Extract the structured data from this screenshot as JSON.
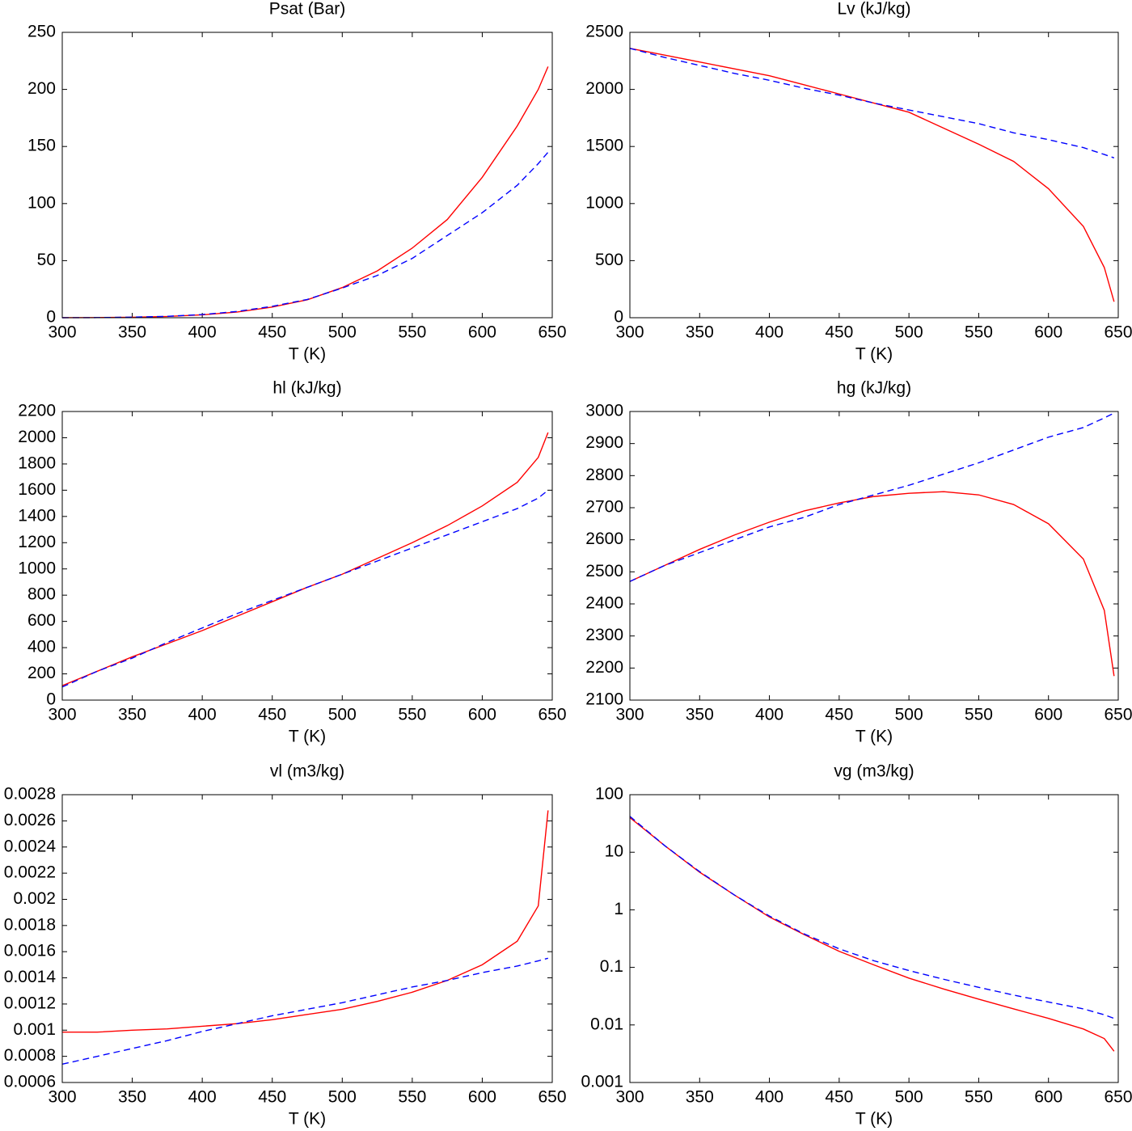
{
  "chart_data": [
    {
      "type": "line",
      "title": "Psat (Bar)",
      "xlabel": "T (K)",
      "x": [
        300,
        325,
        350,
        375,
        400,
        425,
        450,
        475,
        500,
        525,
        550,
        575,
        600,
        625,
        640,
        647
      ],
      "xlim": [
        300,
        650
      ],
      "xticks": [
        300,
        350,
        400,
        450,
        500,
        550,
        600,
        650
      ],
      "ylim": [
        0,
        250
      ],
      "yticks": [
        0,
        50,
        100,
        150,
        200,
        250
      ],
      "log_y": false,
      "series": [
        {
          "color": "#ff0000",
          "dash": false,
          "values": [
            0.035,
            0.13,
            0.42,
            1.1,
            2.5,
            5,
            9.3,
            15.7,
            26.4,
            41,
            61,
            86,
            123,
            168,
            200,
            220
          ]
        },
        {
          "color": "#0000ff",
          "dash": true,
          "values": [
            0,
            0.1,
            0.5,
            1.2,
            2.8,
            5.5,
            10,
            16,
            26,
            37,
            52,
            72,
            92,
            116,
            135,
            145
          ]
        }
      ]
    },
    {
      "type": "line",
      "title": "Lv (kJ/kg)",
      "xlabel": "T (K)",
      "x": [
        300,
        325,
        350,
        375,
        400,
        425,
        450,
        475,
        500,
        525,
        550,
        575,
        600,
        625,
        640,
        647
      ],
      "xlim": [
        300,
        650
      ],
      "xticks": [
        300,
        350,
        400,
        450,
        500,
        550,
        600,
        650
      ],
      "ylim": [
        0,
        2500
      ],
      "yticks": [
        0,
        500,
        1000,
        1500,
        2000,
        2500
      ],
      "log_y": false,
      "series": [
        {
          "color": "#ff0000",
          "dash": false,
          "values": [
            2360,
            2300,
            2240,
            2180,
            2120,
            2040,
            1960,
            1880,
            1800,
            1660,
            1520,
            1370,
            1130,
            800,
            440,
            140
          ]
        },
        {
          "color": "#0000ff",
          "dash": true,
          "values": [
            2360,
            2280,
            2210,
            2140,
            2080,
            2010,
            1950,
            1880,
            1820,
            1760,
            1700,
            1620,
            1560,
            1490,
            1430,
            1400
          ]
        }
      ]
    },
    {
      "type": "line",
      "title": "hl (kJ/kg)",
      "xlabel": "T (K)",
      "x": [
        300,
        325,
        350,
        375,
        400,
        425,
        450,
        475,
        500,
        525,
        550,
        575,
        600,
        625,
        640,
        647
      ],
      "xlim": [
        300,
        650
      ],
      "xticks": [
        300,
        350,
        400,
        450,
        500,
        550,
        600,
        650
      ],
      "ylim": [
        0,
        2200
      ],
      "yticks": [
        0,
        200,
        400,
        600,
        800,
        1000,
        1200,
        1400,
        1600,
        1800,
        2000,
        2200
      ],
      "log_y": false,
      "series": [
        {
          "color": "#ff0000",
          "dash": false,
          "values": [
            110,
            220,
            330,
            430,
            530,
            640,
            750,
            860,
            960,
            1080,
            1200,
            1330,
            1480,
            1660,
            1850,
            2040
          ]
        },
        {
          "color": "#0000ff",
          "dash": true,
          "values": [
            100,
            220,
            320,
            440,
            550,
            660,
            760,
            860,
            960,
            1060,
            1160,
            1260,
            1360,
            1460,
            1540,
            1600
          ]
        }
      ]
    },
    {
      "type": "line",
      "title": "hg (kJ/kg)",
      "xlabel": "T (K)",
      "x": [
        300,
        325,
        350,
        375,
        400,
        425,
        450,
        475,
        500,
        525,
        550,
        575,
        600,
        625,
        640,
        647
      ],
      "xlim": [
        300,
        650
      ],
      "xticks": [
        300,
        350,
        400,
        450,
        500,
        550,
        600,
        650
      ],
      "ylim": [
        2100,
        3000
      ],
      "yticks": [
        2100,
        2200,
        2300,
        2400,
        2500,
        2600,
        2700,
        2800,
        2900,
        3000
      ],
      "log_y": false,
      "series": [
        {
          "color": "#ff0000",
          "dash": false,
          "values": [
            2470,
            2520,
            2570,
            2615,
            2655,
            2690,
            2715,
            2735,
            2745,
            2750,
            2740,
            2710,
            2650,
            2540,
            2380,
            2175
          ]
        },
        {
          "color": "#0000ff",
          "dash": true,
          "values": [
            2470,
            2520,
            2560,
            2600,
            2640,
            2670,
            2710,
            2740,
            2770,
            2805,
            2840,
            2880,
            2920,
            2950,
            2980,
            2995
          ]
        }
      ]
    },
    {
      "type": "line",
      "title": "vl (m3/kg)",
      "xlabel": "T (K)",
      "x": [
        300,
        325,
        350,
        375,
        400,
        425,
        450,
        475,
        500,
        525,
        550,
        575,
        600,
        625,
        640,
        647
      ],
      "xlim": [
        300,
        650
      ],
      "xticks": [
        300,
        350,
        400,
        450,
        500,
        550,
        600,
        650
      ],
      "ylim": [
        0.0006,
        0.0028
      ],
      "yticks": [
        0.0006,
        0.0008,
        0.001,
        0.0012,
        0.0014,
        0.0016,
        0.0018,
        0.002,
        0.0022,
        0.0024,
        0.0026,
        0.0028
      ],
      "log_y": false,
      "series": [
        {
          "color": "#ff0000",
          "dash": false,
          "values": [
            0.000985,
            0.000985,
            0.001,
            0.00101,
            0.00103,
            0.00105,
            0.00108,
            0.00112,
            0.00116,
            0.00122,
            0.00129,
            0.00138,
            0.0015,
            0.00168,
            0.00195,
            0.00268
          ]
        },
        {
          "color": "#0000ff",
          "dash": true,
          "values": [
            0.00074,
            0.0008,
            0.00086,
            0.00092,
            0.00099,
            0.00105,
            0.00111,
            0.00116,
            0.00121,
            0.00127,
            0.00133,
            0.00138,
            0.00144,
            0.00149,
            0.00153,
            0.00155
          ]
        }
      ]
    },
    {
      "type": "line",
      "title": "vg (m3/kg)",
      "xlabel": "T (K)",
      "x": [
        300,
        325,
        350,
        375,
        400,
        425,
        450,
        475,
        500,
        525,
        550,
        575,
        600,
        625,
        640,
        647
      ],
      "xlim": [
        300,
        650
      ],
      "xticks": [
        300,
        350,
        400,
        450,
        500,
        550,
        600,
        650
      ],
      "ylim": [
        0.001,
        100
      ],
      "yticks": [
        0.001,
        0.01,
        0.1,
        1,
        10,
        100
      ],
      "log_y": true,
      "series": [
        {
          "color": "#ff0000",
          "dash": false,
          "values": [
            40,
            13,
            4.5,
            1.8,
            0.75,
            0.37,
            0.19,
            0.11,
            0.065,
            0.042,
            0.028,
            0.019,
            0.013,
            0.0085,
            0.0058,
            0.0035
          ]
        },
        {
          "color": "#0000ff",
          "dash": true,
          "values": [
            42,
            13,
            4.6,
            1.8,
            0.78,
            0.38,
            0.21,
            0.13,
            0.088,
            0.062,
            0.045,
            0.033,
            0.025,
            0.019,
            0.015,
            0.013
          ]
        }
      ]
    }
  ]
}
